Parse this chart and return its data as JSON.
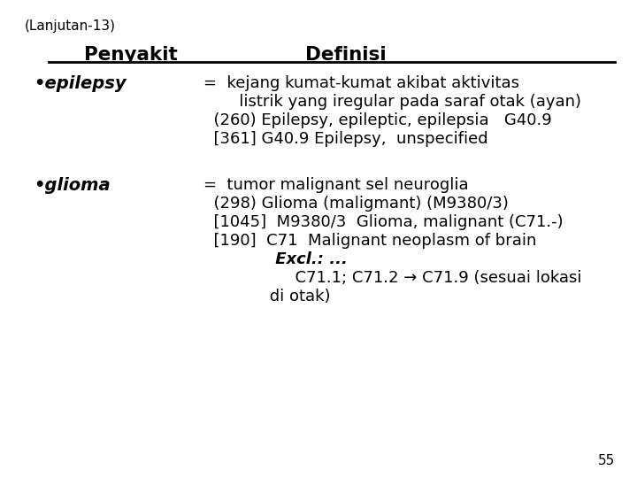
{
  "background_color": "#ffffff",
  "header": "(Lanjutan-13)",
  "col1_header": "Penyakit",
  "col2_header": "Definisi",
  "page_number": "55",
  "epilepsy_label": "•epilepsy",
  "epilepsy_lines": [
    "=  kejang kumat-kumat akibat aktivitas",
    "       listrik yang iregular pada saraf otak (ayan)",
    "  (260) Epilepsy, epileptic, epilepsia   G40.9",
    "  [361] G40.9 Epilepsy,  unspecified"
  ],
  "glioma_label": "•glioma",
  "glioma_lines": [
    "=  tumor malignant sel neuroglia",
    "  (298) Glioma (maligmant) (M9380/3)",
    "  [1045]  M9380/3  Glioma, malignant (C71.-)",
    "  [190]  C71  Malignant neoplasm of brain",
    "             Excl.: ...",
    "                  C71.1; C71.2 → C71.9 (sesuai lokasi",
    "             di otak)"
  ],
  "glioma_excl_index": 4
}
